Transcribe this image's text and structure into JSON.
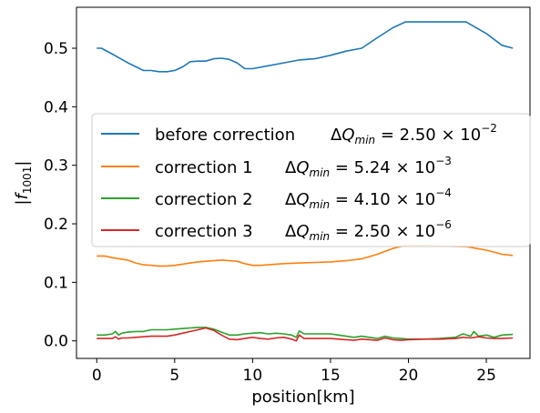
{
  "chart_data": {
    "type": "line",
    "title": "",
    "xlabel": "position[km]",
    "ylabel_main": "|f",
    "ylabel_sub": "1001",
    "ylabel_end": "|",
    "xlim": [
      -1.3,
      27.8
    ],
    "ylim": [
      -0.03,
      0.57
    ],
    "xticks": [
      0,
      5,
      10,
      15,
      20,
      25
    ],
    "xtick_labels": [
      "0",
      "5",
      "10",
      "15",
      "20",
      "25"
    ],
    "yticks": [
      0.0,
      0.1,
      0.2,
      0.3,
      0.4,
      0.5
    ],
    "ytick_labels": [
      "0.0",
      "0.1",
      "0.2",
      "0.3",
      "0.4",
      "0.5"
    ],
    "grid": false,
    "legend_position": "center-left",
    "series": [
      {
        "legend_prefix": "before correction",
        "dq_mantissa": "2.50",
        "dq_exponent": "−2",
        "color": "#1f77b4",
        "x": [
          0,
          0.3,
          1,
          2,
          3,
          3.5,
          4,
          4.5,
          5,
          5.5,
          6,
          6.5,
          7,
          7.5,
          8,
          8.5,
          9,
          9.5,
          10,
          11,
          12,
          13,
          14,
          15,
          16,
          17,
          18,
          19,
          19.8,
          21,
          22,
          23.7,
          25,
          26,
          26.7
        ],
        "y": [
          0.5,
          0.5,
          0.49,
          0.475,
          0.462,
          0.462,
          0.46,
          0.46,
          0.462,
          0.468,
          0.477,
          0.478,
          0.478,
          0.482,
          0.483,
          0.481,
          0.475,
          0.465,
          0.465,
          0.47,
          0.475,
          0.48,
          0.482,
          0.488,
          0.495,
          0.5,
          0.518,
          0.535,
          0.545,
          0.545,
          0.545,
          0.545,
          0.525,
          0.505,
          0.5
        ]
      },
      {
        "legend_prefix": "correction 1",
        "dq_mantissa": "5.24",
        "dq_exponent": "−3",
        "color": "#ff7f0e",
        "x": [
          0,
          0.5,
          1,
          1.5,
          2,
          2.5,
          3,
          3.5,
          4,
          4.5,
          5,
          5.5,
          6,
          6.5,
          7,
          7.5,
          8,
          8.5,
          9,
          9.5,
          10,
          10.5,
          11,
          11.5,
          12,
          13,
          14,
          15,
          16,
          17,
          18,
          19,
          19.8,
          21,
          22,
          23.7,
          25,
          26,
          26.7
        ],
        "y": [
          0.145,
          0.145,
          0.142,
          0.14,
          0.138,
          0.133,
          0.13,
          0.129,
          0.128,
          0.128,
          0.129,
          0.131,
          0.133,
          0.135,
          0.136,
          0.137,
          0.138,
          0.137,
          0.136,
          0.132,
          0.129,
          0.129,
          0.13,
          0.131,
          0.132,
          0.133,
          0.134,
          0.135,
          0.137,
          0.14,
          0.148,
          0.158,
          0.163,
          0.163,
          0.162,
          0.161,
          0.155,
          0.148,
          0.146
        ]
      },
      {
        "legend_prefix": "correction 2",
        "dq_mantissa": "4.10",
        "dq_exponent": "−4",
        "color": "#2ca02c",
        "x": [
          0,
          0.5,
          1,
          1.2,
          1.4,
          1.6,
          2,
          2.5,
          3,
          3.5,
          4,
          4.5,
          5,
          5.5,
          6,
          6.5,
          7,
          7.5,
          8,
          8.5,
          9,
          9.5,
          10,
          10.5,
          11,
          11.5,
          12,
          12.5,
          12.8,
          13,
          13.3,
          14,
          15,
          15.5,
          16,
          16.5,
          17,
          17.5,
          18,
          18.5,
          19,
          19.5,
          20,
          21,
          22,
          23,
          23.5,
          24,
          24.2,
          24.5,
          25,
          25.5,
          26,
          26.7
        ],
        "y": [
          0.01,
          0.01,
          0.012,
          0.016,
          0.01,
          0.013,
          0.015,
          0.016,
          0.016,
          0.019,
          0.019,
          0.019,
          0.02,
          0.021,
          0.022,
          0.023,
          0.023,
          0.02,
          0.015,
          0.01,
          0.01,
          0.012,
          0.013,
          0.014,
          0.012,
          0.013,
          0.012,
          0.01,
          0.006,
          0.017,
          0.012,
          0.012,
          0.012,
          0.01,
          0.008,
          0.006,
          0.008,
          0.006,
          0.004,
          0.008,
          0.005,
          0.004,
          0.003,
          0.003,
          0.004,
          0.006,
          0.012,
          0.008,
          0.016,
          0.008,
          0.01,
          0.006,
          0.01,
          0.011
        ]
      },
      {
        "legend_prefix": "correction 3",
        "dq_mantissa": "2.50",
        "dq_exponent": "−6",
        "color": "#d62728",
        "x": [
          0,
          0.5,
          1,
          1.2,
          1.4,
          1.6,
          2,
          2.5,
          3,
          3.5,
          4,
          4.5,
          5,
          5.5,
          6,
          6.5,
          7,
          7.5,
          8,
          8.5,
          9,
          9.5,
          10,
          10.5,
          11,
          11.5,
          12,
          12.5,
          12.8,
          13,
          13.3,
          14,
          15,
          15.5,
          16,
          16.5,
          17,
          17.5,
          18,
          18.5,
          19,
          19.5,
          20,
          21,
          22,
          23,
          23.5,
          24,
          24.5,
          25,
          25.5,
          26,
          26.7
        ],
        "y": [
          0.004,
          0.004,
          0.004,
          0.007,
          0.003,
          0.005,
          0.005,
          0.006,
          0.007,
          0.008,
          0.008,
          0.008,
          0.01,
          0.013,
          0.016,
          0.019,
          0.022,
          0.018,
          0.01,
          0.003,
          0.002,
          0.004,
          0.006,
          0.004,
          0.003,
          0.005,
          0.006,
          0.003,
          0.0,
          0.01,
          0.004,
          0.004,
          0.004,
          0.003,
          0.002,
          0.001,
          0.003,
          0.002,
          0.001,
          0.005,
          0.002,
          0.001,
          0.002,
          0.003,
          0.003,
          0.004,
          0.006,
          0.005,
          0.007,
          0.005,
          0.004,
          0.004,
          0.005
        ]
      }
    ]
  }
}
